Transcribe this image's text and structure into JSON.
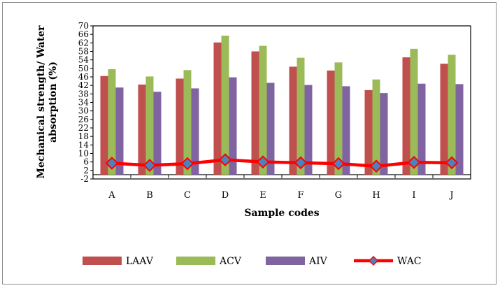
{
  "chart_data": {
    "type": "bar",
    "title": "",
    "xlabel": "Sample codes",
    "ylabel_lines": [
      "Mechanical strength/ Water",
      "absorption (%)"
    ],
    "ylim": [
      -2,
      70
    ],
    "ytick_step": 4,
    "ytick_labels": [
      "-2",
      "2",
      "6",
      "10",
      "14",
      "18",
      "22",
      "26",
      "30",
      "34",
      "38",
      "42",
      "46",
      "50",
      "54",
      "58",
      "62",
      "66",
      "70"
    ],
    "grid": false,
    "legend_position": "bottom",
    "categories": [
      "A",
      "B",
      "C",
      "D",
      "E",
      "F",
      "G",
      "H",
      "I",
      "J"
    ],
    "series": [
      {
        "name": "LAAV",
        "kind": "bar",
        "color": "#c0504d",
        "values": [
          46.4,
          42.4,
          45.2,
          62.2,
          58.0,
          50.8,
          49.0,
          39.8,
          55.2,
          52.2
        ]
      },
      {
        "name": "ACV",
        "kind": "bar",
        "color": "#9bbb59",
        "values": [
          49.6,
          46.2,
          49.2,
          65.4,
          60.6,
          55.0,
          52.8,
          44.8,
          59.2,
          56.4
        ]
      },
      {
        "name": "AIV",
        "kind": "bar",
        "color": "#8064a2",
        "values": [
          41.0,
          39.0,
          40.6,
          45.8,
          43.2,
          42.2,
          41.6,
          38.4,
          42.8,
          42.6
        ]
      },
      {
        "name": "WAC",
        "kind": "line",
        "color": "#ff0000",
        "marker_color": "#4f81bd",
        "values": [
          5.4,
          4.4,
          5.2,
          7.0,
          6.0,
          5.6,
          5.2,
          4.0,
          5.8,
          5.6
        ]
      }
    ]
  }
}
